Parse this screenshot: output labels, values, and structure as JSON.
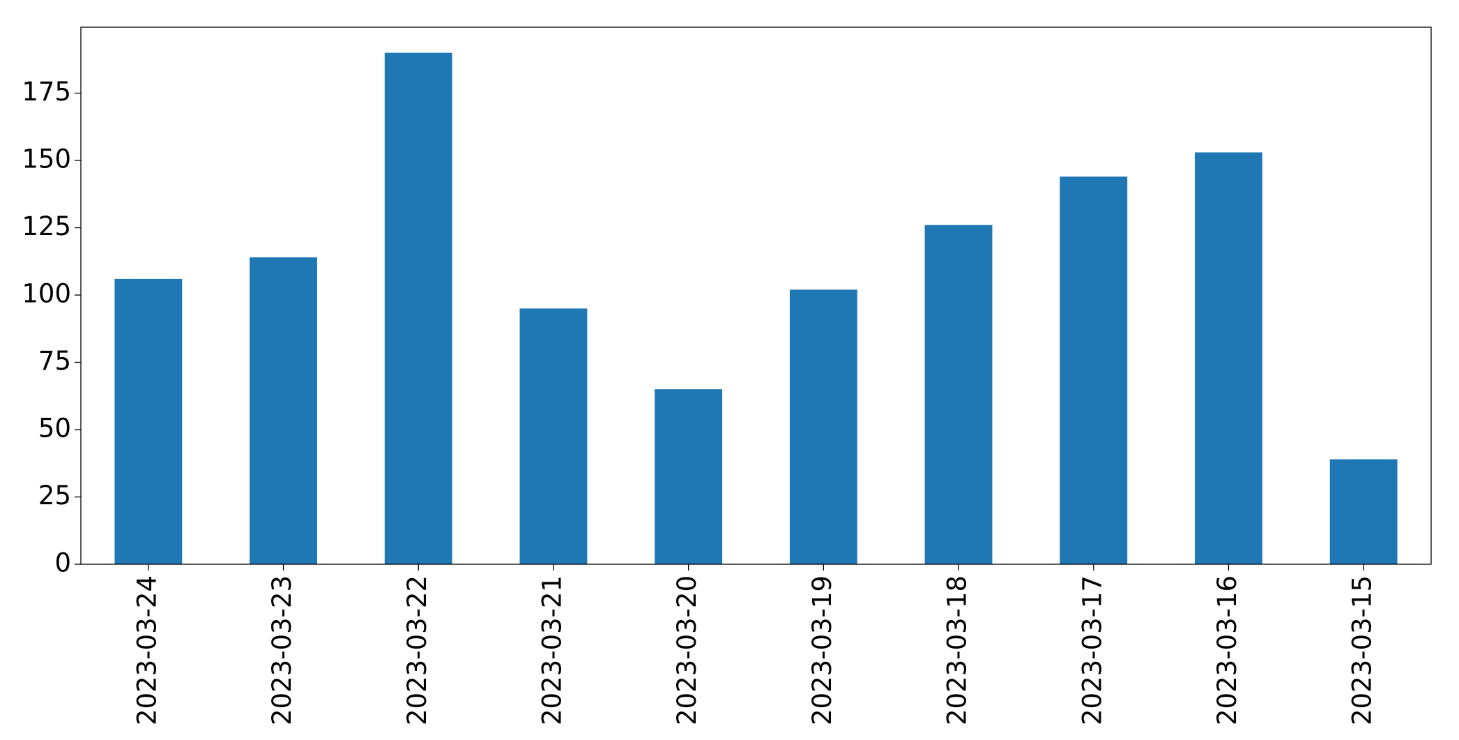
{
  "chart_data": {
    "type": "bar",
    "categories": [
      "2023-03-24",
      "2023-03-23",
      "2023-03-22",
      "2023-03-21",
      "2023-03-20",
      "2023-03-19",
      "2023-03-18",
      "2023-03-17",
      "2023-03-16",
      "2023-03-15"
    ],
    "values": [
      106,
      114,
      190,
      95,
      65,
      102,
      126,
      144,
      153,
      39
    ],
    "color": "#1f77b4",
    "ylim": [
      0,
      199.5
    ],
    "yticks": [
      0,
      25,
      50,
      75,
      100,
      125,
      150,
      175
    ],
    "grid": false
  }
}
